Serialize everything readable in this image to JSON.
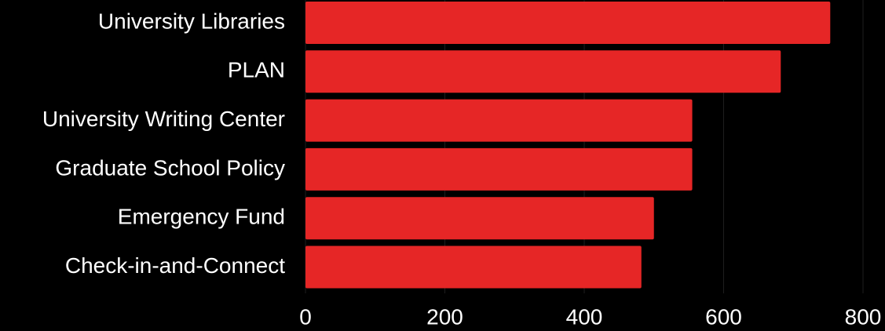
{
  "chart_data": {
    "type": "bar",
    "orientation": "horizontal",
    "categories": [
      "University Libraries",
      "PLAN",
      "University Writing Center",
      "Graduate School Policy",
      "Emergency Fund",
      "Check-in-and-Connect"
    ],
    "values": [
      753,
      682,
      555,
      555,
      500,
      482
    ],
    "xlim": [
      0,
      800
    ],
    "xticks": [
      "0",
      "200",
      "400",
      "600",
      "800"
    ],
    "title": "",
    "xlabel": "",
    "ylabel": "",
    "grid": "vertical",
    "legend": "none",
    "colors": {
      "background": "#000000",
      "bar": "#e62626",
      "text": "#ffffff",
      "grid": "#1e1e1e"
    }
  }
}
